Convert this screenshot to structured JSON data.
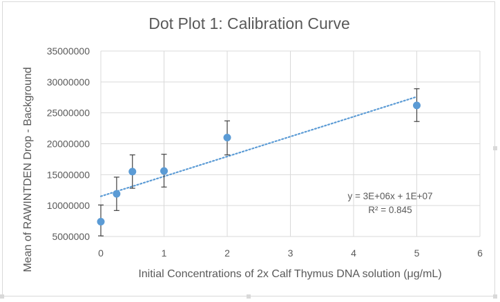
{
  "chart_data": {
    "type": "scatter",
    "title": "Dot Plot 1: Calibration Curve",
    "xlabel": "Initial Concentrations of 2x Calf Thymus DNA solution (μg/mL)",
    "ylabel": "Mean of RAWINTDEN Drop - Background",
    "xlim": [
      0,
      6
    ],
    "ylim": [
      5000000,
      35000000
    ],
    "x_ticks": [
      "0",
      "1",
      "2",
      "3",
      "4",
      "5",
      "6"
    ],
    "y_ticks": [
      "5000000",
      "10000000",
      "15000000",
      "20000000",
      "25000000",
      "30000000",
      "35000000"
    ],
    "grid": true,
    "legend": "none",
    "series": [
      {
        "x": [
          0,
          0.25,
          0.5,
          1,
          2,
          5
        ],
        "y": [
          7400000,
          11900000,
          15500000,
          15600000,
          21000000,
          26200000
        ],
        "err_low": [
          5100000,
          9200000,
          12800000,
          13000000,
          18200000,
          23600000
        ],
        "err_high": [
          10100000,
          14600000,
          18200000,
          18300000,
          23700000,
          28900000
        ],
        "color": "#5b9bd5"
      }
    ],
    "trendline": {
      "type": "linear",
      "x_start": 0,
      "y_start": 11500000,
      "x_end": 5,
      "y_end": 27600000,
      "color": "#5b9bd5",
      "equation": "y = 3E+06x + 1E+07",
      "r_squared": "R² = 0.845"
    }
  }
}
